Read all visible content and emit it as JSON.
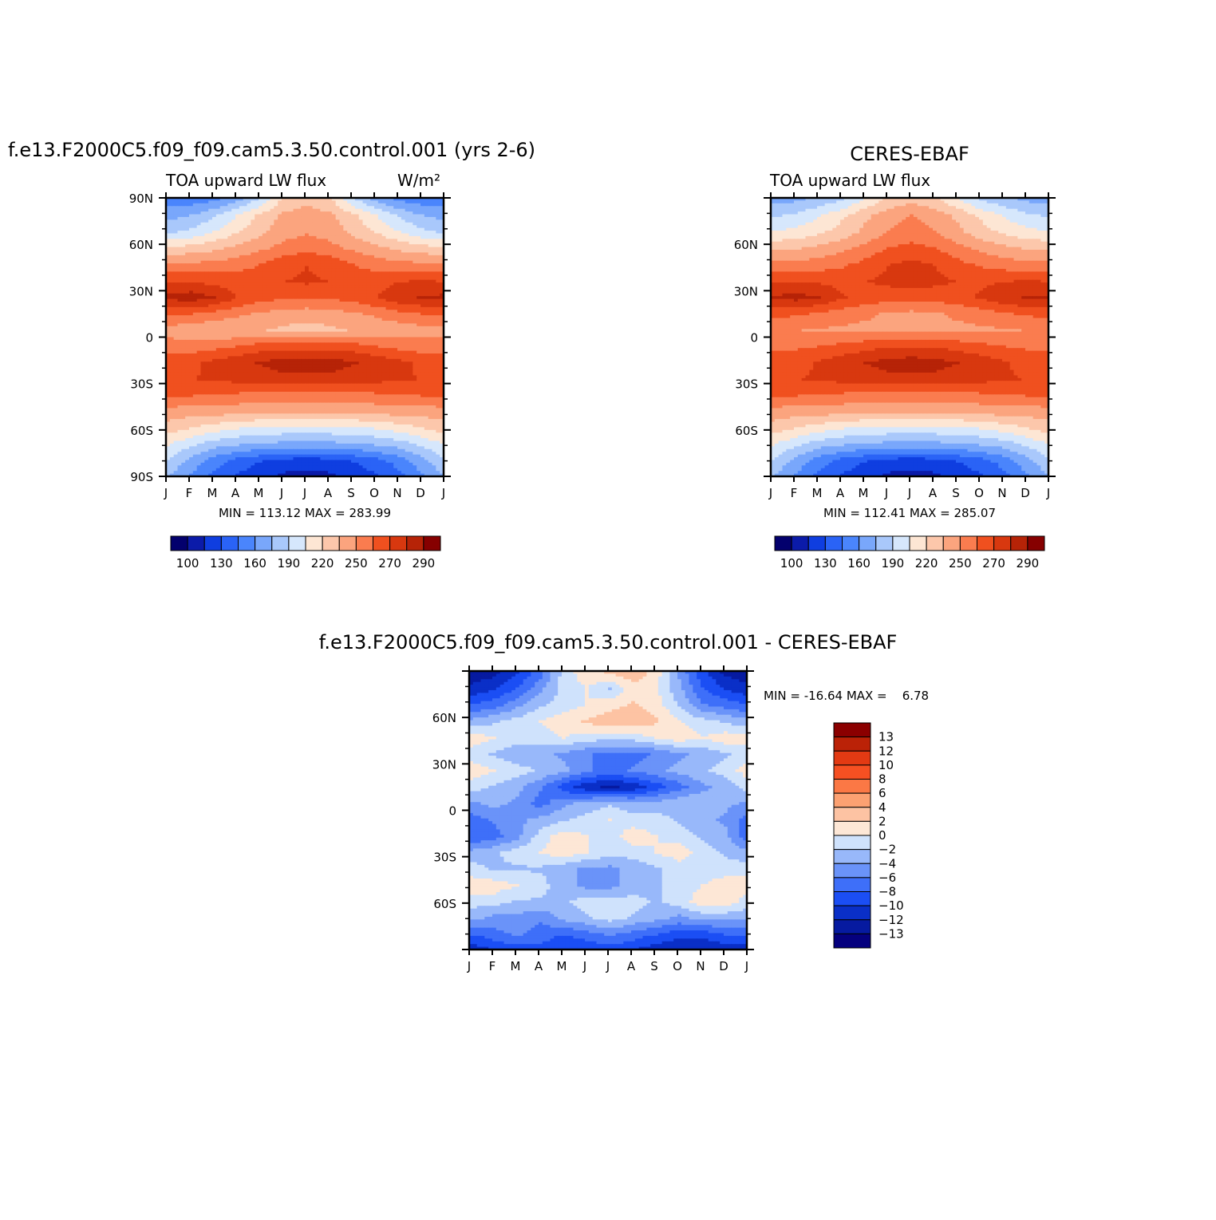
{
  "chart_data": [
    {
      "type": "heatmap",
      "title": "f.e13.F2000C5.f09_f09.cam5.3.50.control.001 (yrs 2-6)",
      "subtitle_left": "TOA upward LW flux",
      "units": "W/m²",
      "x_ticks": [
        "J",
        "F",
        "M",
        "A",
        "M",
        "J",
        "J",
        "A",
        "S",
        "O",
        "N",
        "D",
        "J"
      ],
      "y_ticks": [
        "90N",
        "60N",
        "30N",
        "0",
        "30S",
        "60S",
        "90S"
      ],
      "stats": "MIN = 113.12 MAX = 283.99",
      "colorbar_labels": [
        "100",
        "130",
        "160",
        "190",
        "220",
        "250",
        "270",
        "290"
      ],
      "zlim": [
        100,
        300
      ],
      "latitudes": [
        90,
        75,
        60,
        45,
        30,
        22,
        15,
        8,
        0,
        -8,
        -17,
        -25,
        -35,
        -45,
        -55,
        -65,
        -78,
        -90
      ],
      "months": [
        "J",
        "F",
        "M",
        "A",
        "M",
        "J",
        "J",
        "A",
        "S",
        "O",
        "N",
        "D",
        "J"
      ],
      "values": [
        [
          155,
          155,
          160,
          170,
          190,
          215,
          222,
          215,
          190,
          170,
          160,
          155,
          155
        ],
        [
          170,
          175,
          185,
          200,
          215,
          228,
          230,
          228,
          215,
          200,
          185,
          175,
          170
        ],
        [
          185,
          190,
          200,
          212,
          222,
          232,
          236,
          232,
          222,
          212,
          200,
          190,
          185
        ],
        [
          215,
          218,
          222,
          228,
          235,
          242,
          246,
          242,
          235,
          228,
          222,
          218,
          215
        ],
        [
          240,
          240,
          242,
          245,
          250,
          258,
          262,
          258,
          250,
          245,
          242,
          240,
          240
        ],
        [
          262,
          262,
          258,
          256,
          258,
          262,
          265,
          262,
          258,
          258,
          262,
          263,
          262
        ],
        [
          278,
          282,
          276,
          262,
          255,
          252,
          252,
          252,
          255,
          262,
          272,
          276,
          278
        ],
        [
          252,
          250,
          246,
          240,
          236,
          232,
          230,
          232,
          236,
          240,
          246,
          250,
          252
        ],
        [
          232,
          228,
          226,
          226,
          226,
          222,
          220,
          222,
          226,
          228,
          230,
          232,
          232
        ],
        [
          244,
          244,
          246,
          250,
          256,
          258,
          258,
          258,
          256,
          250,
          246,
          244,
          244
        ],
        [
          258,
          260,
          266,
          272,
          276,
          282,
          283,
          282,
          276,
          272,
          266,
          260,
          258
        ],
        [
          262,
          262,
          264,
          266,
          268,
          270,
          270,
          270,
          268,
          266,
          264,
          262,
          262
        ],
        [
          250,
          250,
          248,
          247,
          245,
          244,
          244,
          244,
          245,
          247,
          248,
          250,
          250
        ],
        [
          232,
          230,
          230,
          228,
          226,
          226,
          226,
          226,
          226,
          228,
          230,
          230,
          232
        ],
        [
          218,
          212,
          205,
          200,
          198,
          196,
          196,
          196,
          198,
          200,
          205,
          212,
          218
        ],
        [
          200,
          190,
          180,
          175,
          172,
          170,
          170,
          170,
          172,
          175,
          180,
          190,
          200
        ],
        [
          185,
          170,
          155,
          145,
          138,
          132,
          130,
          132,
          138,
          145,
          155,
          170,
          185
        ],
        [
          175,
          160,
          145,
          135,
          128,
          122,
          120,
          122,
          128,
          135,
          145,
          160,
          175
        ]
      ]
    },
    {
      "type": "heatmap",
      "title": "CERES-EBAF",
      "subtitle_left": "TOA upward LW flux",
      "x_ticks": [
        "J",
        "F",
        "M",
        "A",
        "M",
        "J",
        "J",
        "A",
        "S",
        "O",
        "N",
        "D",
        "J"
      ],
      "y_ticks": [
        "60N",
        "30N",
        "0",
        "30S",
        "60S"
      ],
      "stats": "MIN = 112.41 MAX = 285.07",
      "colorbar_labels": [
        "100",
        "130",
        "160",
        "190",
        "220",
        "250",
        "270",
        "290"
      ],
      "zlim": [
        100,
        300
      ],
      "latitudes": [
        90,
        75,
        60,
        45,
        30,
        22,
        15,
        8,
        0,
        -8,
        -17,
        -25,
        -35,
        -45,
        -55,
        -65,
        -78,
        -90
      ],
      "months": [
        "J",
        "F",
        "M",
        "A",
        "M",
        "J",
        "J",
        "A",
        "S",
        "O",
        "N",
        "D",
        "J"
      ],
      "values": [
        [
          170,
          172,
          178,
          185,
          200,
          215,
          220,
          215,
          200,
          185,
          178,
          172,
          170
        ],
        [
          185,
          190,
          198,
          210,
          222,
          232,
          238,
          232,
          222,
          210,
          198,
          190,
          185
        ],
        [
          200,
          204,
          210,
          218,
          228,
          238,
          242,
          238,
          228,
          218,
          210,
          204,
          200
        ],
        [
          222,
          224,
          228,
          234,
          242,
          250,
          254,
          250,
          242,
          234,
          228,
          224,
          222
        ],
        [
          242,
          242,
          244,
          248,
          254,
          262,
          266,
          262,
          254,
          248,
          244,
          242,
          242
        ],
        [
          262,
          262,
          260,
          258,
          262,
          266,
          268,
          266,
          262,
          260,
          262,
          263,
          262
        ],
        [
          276,
          280,
          275,
          264,
          258,
          255,
          254,
          255,
          258,
          264,
          272,
          276,
          276
        ],
        [
          254,
          252,
          248,
          244,
          240,
          236,
          234,
          236,
          240,
          244,
          248,
          252,
          254
        ],
        [
          240,
          238,
          236,
          235,
          234,
          234,
          234,
          234,
          234,
          235,
          236,
          238,
          240
        ],
        [
          248,
          248,
          250,
          254,
          258,
          262,
          262,
          262,
          258,
          254,
          250,
          248,
          248
        ],
        [
          256,
          258,
          264,
          270,
          275,
          280,
          282,
          280,
          275,
          270,
          264,
          258,
          256
        ],
        [
          262,
          262,
          264,
          266,
          268,
          270,
          270,
          270,
          268,
          266,
          264,
          262,
          262
        ],
        [
          250,
          250,
          248,
          247,
          245,
          244,
          244,
          244,
          245,
          247,
          248,
          250,
          250
        ],
        [
          232,
          230,
          230,
          228,
          226,
          226,
          226,
          226,
          226,
          228,
          230,
          230,
          232
        ],
        [
          218,
          212,
          205,
          200,
          198,
          196,
          196,
          196,
          198,
          200,
          205,
          212,
          218
        ],
        [
          200,
          190,
          180,
          175,
          172,
          170,
          170,
          170,
          172,
          175,
          180,
          190,
          200
        ],
        [
          185,
          170,
          155,
          145,
          138,
          132,
          130,
          132,
          138,
          145,
          155,
          170,
          185
        ],
        [
          175,
          160,
          145,
          135,
          128,
          122,
          120,
          122,
          128,
          135,
          145,
          160,
          175
        ]
      ]
    },
    {
      "type": "heatmap",
      "title": "f.e13.F2000C5.f09_f09.cam5.3.50.control.001 - CERES-EBAF",
      "x_ticks": [
        "J",
        "F",
        "M",
        "A",
        "M",
        "J",
        "J",
        "A",
        "S",
        "O",
        "N",
        "D",
        "J"
      ],
      "y_ticks": [
        "60N",
        "30N",
        "0",
        "30S",
        "60S"
      ],
      "stats": "MIN = -16.64 MAX =    6.78",
      "colorbar_labels": [
        "13",
        "12",
        "10",
        "8",
        "6",
        "4",
        "2",
        "0",
        "-2",
        "-4",
        "-6",
        "-8",
        "-10",
        "-12",
        "-13"
      ],
      "zlim": [
        -14,
        14
      ],
      "latitudes": [
        90,
        75,
        60,
        45,
        30,
        22,
        15,
        8,
        0,
        -8,
        -17,
        -25,
        -35,
        -45,
        -55,
        -65,
        -78,
        -90
      ],
      "months": [
        "J",
        "F",
        "M",
        "A",
        "M",
        "J",
        "J",
        "A",
        "S",
        "O",
        "N",
        "D",
        "J"
      ],
      "values": [
        [
          -12,
          -11,
          -9,
          -6,
          -1,
          1,
          2,
          3,
          1,
          -4,
          -8,
          -11,
          -12
        ],
        [
          -10,
          -9,
          -7,
          -4,
          -1,
          0,
          -2,
          1,
          0,
          -3,
          -7,
          -9,
          -10
        ],
        [
          -7,
          -6,
          -4,
          -2,
          -1,
          0,
          1,
          2,
          1,
          -2,
          -5,
          -6,
          -7
        ],
        [
          -3,
          -2,
          -1,
          0,
          1,
          2,
          3,
          3,
          2,
          0,
          -1,
          -2,
          -3
        ],
        [
          1,
          0,
          -1,
          -1,
          0,
          -1,
          -1,
          -1,
          0,
          1,
          0,
          1,
          1
        ],
        [
          -1,
          -2,
          -3,
          -3,
          -4,
          -5,
          -6,
          -6,
          -5,
          -4,
          -3,
          -2,
          -1
        ],
        [
          1,
          0,
          -1,
          -2,
          -3,
          -5,
          -6,
          -5,
          -4,
          -3,
          -2,
          -1,
          1
        ],
        [
          -1,
          -2,
          -3,
          -5,
          -8,
          -10,
          -11,
          -10,
          -8,
          -6,
          -4,
          -3,
          -1
        ],
        [
          -4,
          -3,
          -4,
          -6,
          -4,
          -3,
          -2,
          -3,
          -3,
          -2,
          -2,
          -3,
          -4
        ],
        [
          -6,
          -5,
          -4,
          -3,
          -2,
          -1,
          0,
          -1,
          -1,
          -2,
          -3,
          -4,
          -6
        ],
        [
          -7,
          -6,
          -4,
          -1,
          1,
          0,
          -1,
          1,
          0,
          -1,
          -2,
          -3,
          -7
        ],
        [
          -3,
          -2,
          -1,
          0,
          1,
          0,
          -1,
          -1,
          0,
          1,
          -1,
          -2,
          -3
        ],
        [
          -1,
          -2,
          -2,
          -2,
          -3,
          -4,
          -4,
          -3,
          -2,
          -1,
          -1,
          -1,
          -1
        ],
        [
          1,
          1,
          0,
          -1,
          -3,
          -4,
          -4,
          -3,
          -2,
          -1,
          0,
          1,
          1
        ],
        [
          -1,
          -1,
          -2,
          -2,
          -2,
          -1,
          -1,
          -1,
          -2,
          -1,
          1,
          1,
          -1
        ],
        [
          -3,
          -4,
          -4,
          -5,
          -3,
          -2,
          -1,
          -2,
          -3,
          -4,
          -3,
          -3,
          -3
        ],
        [
          -7,
          -6,
          -5,
          -6,
          -7,
          -6,
          -5,
          -6,
          -7,
          -8,
          -8,
          -7,
          -7
        ],
        [
          -10,
          -9,
          -8,
          -8,
          -9,
          -9,
          -8,
          -9,
          -10,
          -11,
          -11,
          -10,
          -10
        ]
      ]
    }
  ]
}
